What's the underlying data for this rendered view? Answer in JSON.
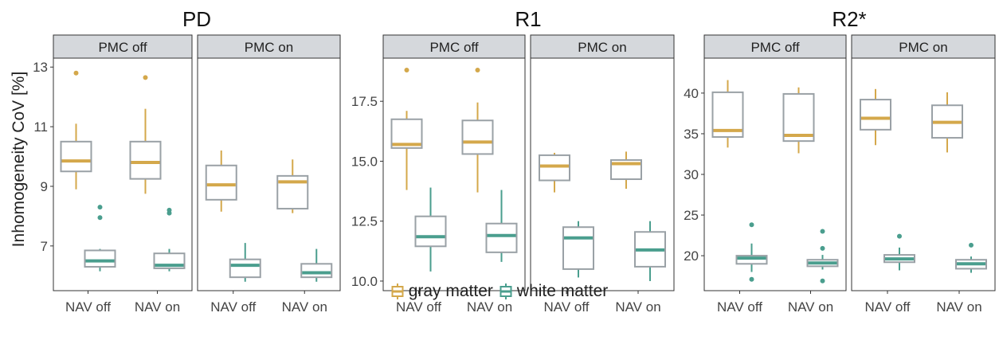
{
  "figure": {
    "ylabel": "Inhomogeneity CoV [%]",
    "legend": [
      {
        "label": "gray matter",
        "color": "#d4a84b"
      },
      {
        "label": "white matter",
        "color": "#4a9e8e"
      }
    ]
  },
  "chart_data": [
    {
      "type": "boxplot",
      "title": "PD",
      "facets": [
        "PMC off",
        "PMC on"
      ],
      "categories": [
        "NAV off",
        "NAV on"
      ],
      "ylim": [
        5.5,
        13.3
      ],
      "yticks": [
        7,
        9,
        11,
        13
      ],
      "yticklabels": [
        "7",
        "9",
        "11",
        "13"
      ],
      "series": [
        {
          "name": "gray matter",
          "boxes": [
            {
              "facet": "PMC off",
              "x": "NAV off",
              "min": 8.9,
              "q1": 9.5,
              "median": 9.85,
              "q3": 10.5,
              "max": 11.1,
              "outliers": [
                12.8
              ]
            },
            {
              "facet": "PMC off",
              "x": "NAV on",
              "min": 8.75,
              "q1": 9.25,
              "median": 9.8,
              "q3": 10.5,
              "max": 11.6,
              "outliers": [
                12.65
              ]
            },
            {
              "facet": "PMC on",
              "x": "NAV off",
              "min": 8.15,
              "q1": 8.55,
              "median": 9.05,
              "q3": 9.7,
              "max": 10.2,
              "outliers": []
            },
            {
              "facet": "PMC on",
              "x": "NAV on",
              "min": 8.1,
              "q1": 8.25,
              "median": 9.15,
              "q3": 9.35,
              "max": 9.9,
              "outliers": []
            }
          ]
        },
        {
          "name": "white matter",
          "boxes": [
            {
              "facet": "PMC off",
              "x": "NAV off",
              "min": 6.15,
              "q1": 6.3,
              "median": 6.5,
              "q3": 6.85,
              "max": 6.9,
              "outliers": [
                8.3,
                7.95
              ]
            },
            {
              "facet": "PMC off",
              "x": "NAV on",
              "min": 6.15,
              "q1": 6.25,
              "median": 6.35,
              "q3": 6.75,
              "max": 6.9,
              "outliers": [
                8.2,
                8.1
              ]
            },
            {
              "facet": "PMC on",
              "x": "NAV off",
              "min": 5.8,
              "q1": 5.95,
              "median": 6.35,
              "q3": 6.55,
              "max": 7.1,
              "outliers": []
            },
            {
              "facet": "PMC on",
              "x": "NAV on",
              "min": 5.8,
              "q1": 5.95,
              "median": 6.1,
              "q3": 6.4,
              "max": 6.9,
              "outliers": []
            }
          ]
        }
      ]
    },
    {
      "type": "boxplot",
      "title": "R1",
      "facets": [
        "PMC off",
        "PMC on"
      ],
      "categories": [
        "NAV off",
        "NAV on"
      ],
      "ylim": [
        9.6,
        19.3
      ],
      "yticks": [
        10.0,
        12.5,
        15.0,
        17.5
      ],
      "yticklabels": [
        "10.0",
        "12.5",
        "15.0",
        "17.5"
      ],
      "series": [
        {
          "name": "gray matter",
          "boxes": [
            {
              "facet": "PMC off",
              "x": "NAV off",
              "min": 13.8,
              "q1": 15.55,
              "median": 15.7,
              "q3": 16.75,
              "max": 17.1,
              "outliers": [
                18.8
              ]
            },
            {
              "facet": "PMC off",
              "x": "NAV on",
              "min": 13.7,
              "q1": 15.3,
              "median": 15.8,
              "q3": 16.7,
              "max": 17.45,
              "outliers": [
                18.8
              ]
            },
            {
              "facet": "PMC on",
              "x": "NAV off",
              "min": 13.7,
              "q1": 14.2,
              "median": 14.8,
              "q3": 15.25,
              "max": 15.35,
              "outliers": []
            },
            {
              "facet": "PMC on",
              "x": "NAV on",
              "min": 13.85,
              "q1": 14.25,
              "median": 14.9,
              "q3": 15.05,
              "max": 15.4,
              "outliers": []
            }
          ]
        },
        {
          "name": "white matter",
          "boxes": [
            {
              "facet": "PMC off",
              "x": "NAV off",
              "min": 10.4,
              "q1": 11.45,
              "median": 11.85,
              "q3": 12.7,
              "max": 13.9,
              "outliers": []
            },
            {
              "facet": "PMC off",
              "x": "NAV on",
              "min": 10.8,
              "q1": 11.2,
              "median": 11.9,
              "q3": 12.4,
              "max": 13.8,
              "outliers": []
            },
            {
              "facet": "PMC on",
              "x": "NAV off",
              "min": 10.15,
              "q1": 10.5,
              "median": 11.8,
              "q3": 12.25,
              "max": 12.5,
              "outliers": []
            },
            {
              "facet": "PMC on",
              "x": "NAV on",
              "min": 10.0,
              "q1": 10.6,
              "median": 11.3,
              "q3": 12.05,
              "max": 12.5,
              "outliers": []
            }
          ]
        }
      ]
    },
    {
      "type": "boxplot",
      "title": "R2*",
      "facets": [
        "PMC off",
        "PMC on"
      ],
      "categories": [
        "NAV off",
        "NAV on"
      ],
      "ylim": [
        15.7,
        44.3
      ],
      "yticks": [
        20,
        25,
        30,
        35,
        40
      ],
      "yticklabels": [
        "20",
        "25",
        "30",
        "35",
        "40"
      ],
      "series": [
        {
          "name": "gray matter",
          "boxes": [
            {
              "facet": "PMC off",
              "x": "NAV off",
              "min": 33.3,
              "q1": 34.6,
              "median": 35.4,
              "q3": 40.1,
              "max": 41.6,
              "outliers": []
            },
            {
              "facet": "PMC off",
              "x": "NAV on",
              "min": 32.6,
              "q1": 34.1,
              "median": 34.8,
              "q3": 39.9,
              "max": 40.7,
              "outliers": []
            },
            {
              "facet": "PMC on",
              "x": "NAV off",
              "min": 33.6,
              "q1": 35.5,
              "median": 36.9,
              "q3": 39.2,
              "max": 40.5,
              "outliers": []
            },
            {
              "facet": "PMC on",
              "x": "NAV on",
              "min": 32.7,
              "q1": 34.5,
              "median": 36.4,
              "q3": 38.5,
              "max": 40.1,
              "outliers": []
            }
          ]
        },
        {
          "name": "white matter",
          "boxes": [
            {
              "facet": "PMC off",
              "x": "NAV off",
              "min": 18.0,
              "q1": 19.0,
              "median": 19.7,
              "q3": 20.0,
              "max": 21.5,
              "outliers": [
                23.8,
                17.1
              ]
            },
            {
              "facet": "PMC off",
              "x": "NAV on",
              "min": 18.3,
              "q1": 18.7,
              "median": 19.1,
              "q3": 19.5,
              "max": 20.1,
              "outliers": [
                23.0,
                20.9,
                16.9
              ]
            },
            {
              "facet": "PMC on",
              "x": "NAV off",
              "min": 18.2,
              "q1": 19.2,
              "median": 19.6,
              "q3": 20.1,
              "max": 21.0,
              "outliers": [
                22.4
              ]
            },
            {
              "facet": "PMC on",
              "x": "NAV on",
              "min": 17.9,
              "q1": 18.4,
              "median": 19.0,
              "q3": 19.5,
              "max": 19.9,
              "outliers": [
                21.3
              ]
            }
          ]
        }
      ]
    }
  ]
}
